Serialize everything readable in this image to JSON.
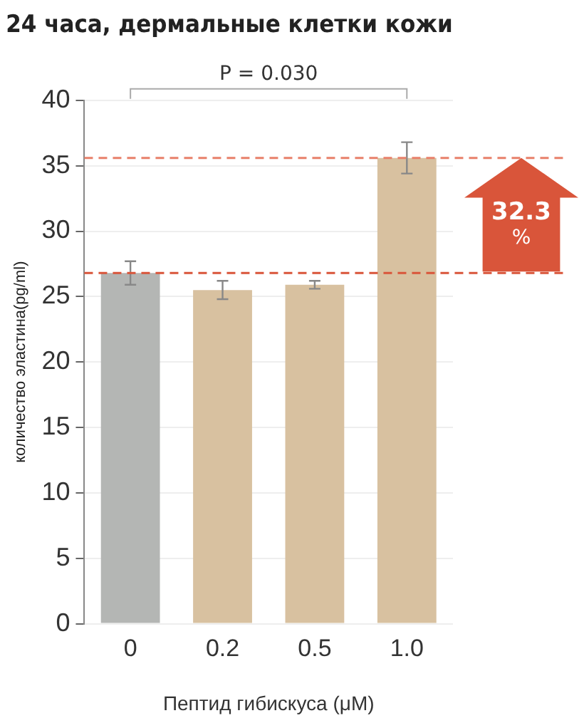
{
  "chart_data": {
    "type": "bar",
    "title": "24 часа, дермальные клетки кожи",
    "xlabel": "Пептид гибискуса (μM)",
    "ylabel": "количество эластина(pg/ml)",
    "categories": [
      "0",
      "0.2",
      "0.5",
      "1.0"
    ],
    "values": [
      26.8,
      25.5,
      25.9,
      35.6
    ],
    "colors": [
      "#b4b6b4",
      "#d8c1a0",
      "#d8c1a0",
      "#d8c1a0"
    ],
    "errors": [
      0.9,
      0.7,
      0.3,
      1.2
    ],
    "ylim": [
      0,
      40
    ],
    "yticks": [
      0,
      5,
      10,
      15,
      20,
      25,
      30,
      35,
      40
    ],
    "grid": "y",
    "legend": false,
    "ref_lines": [
      {
        "axis": "y",
        "value": 35.6,
        "color": "#e8806a",
        "line_style": "dashed"
      },
      {
        "axis": "y",
        "value": 26.8,
        "color": "#d9553a",
        "line_style": "dashed"
      }
    ],
    "annotations": [
      "P = 0.030",
      "32.3\n%"
    ]
  }
}
